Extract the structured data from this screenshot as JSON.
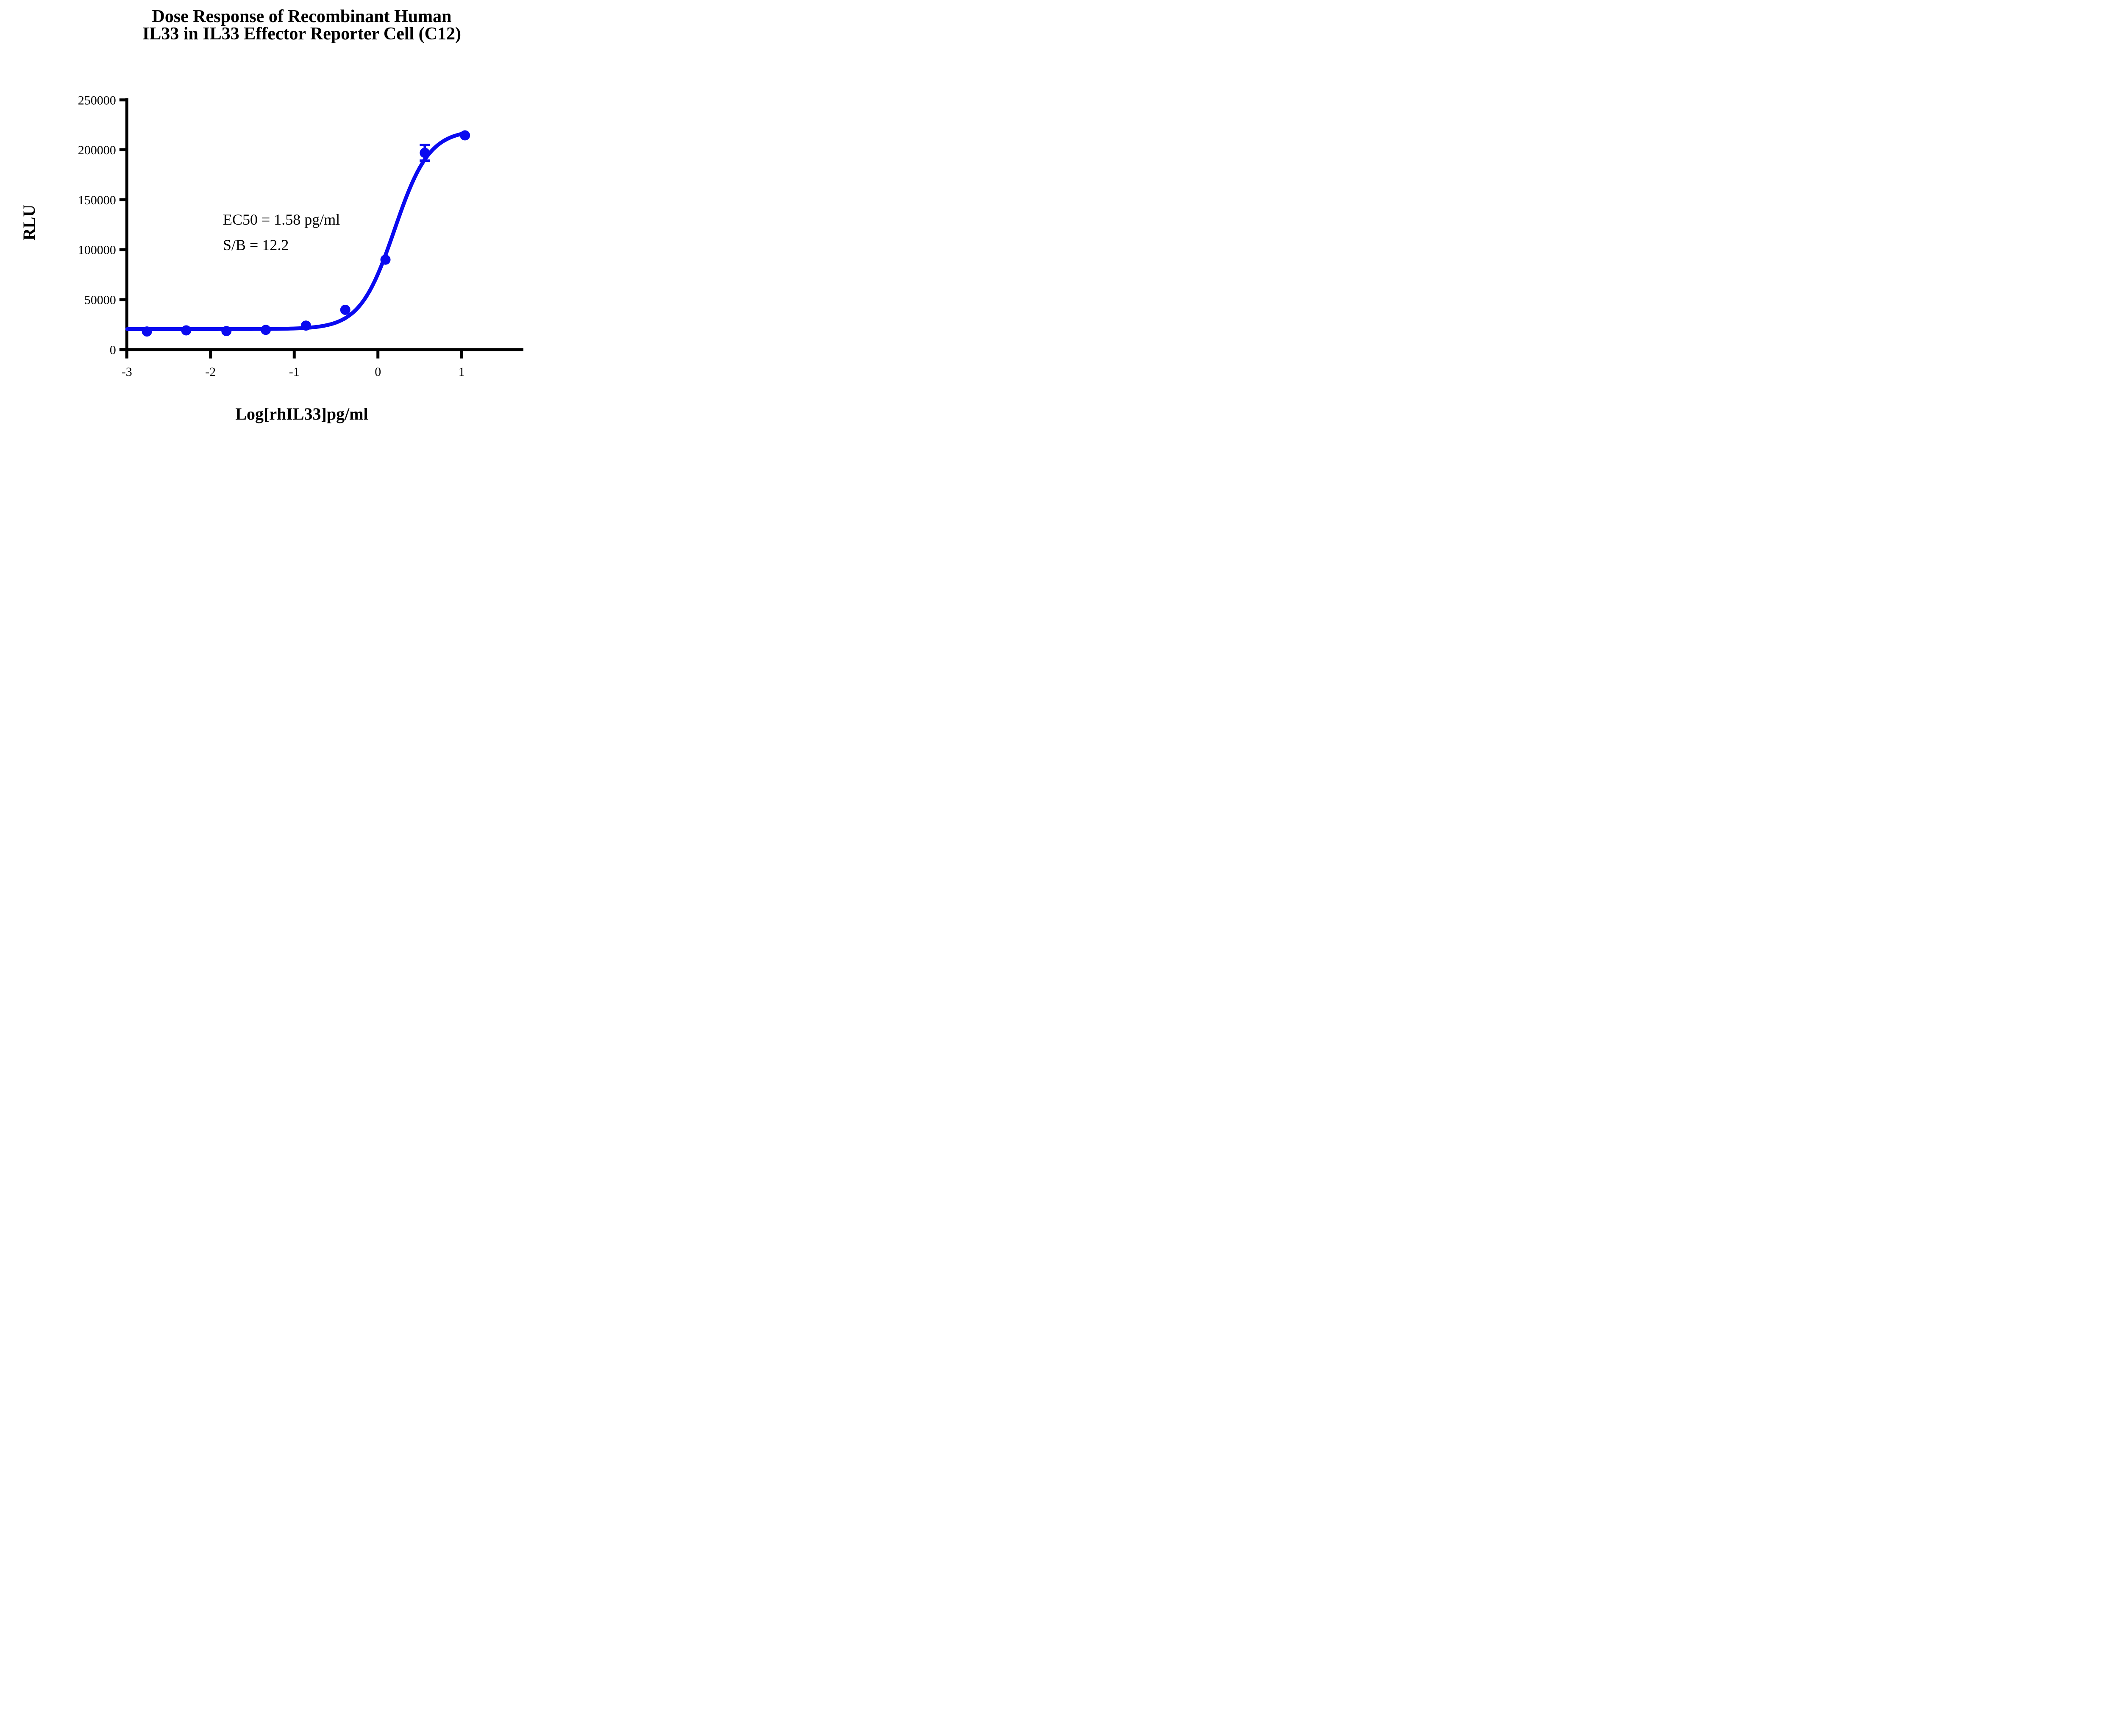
{
  "figure": {
    "title_line1": "Dose Response of Recombinant Human",
    "title_line2": "IL33 in IL33 Effector Reporter Cell (C12)",
    "y_axis_title": "RLU",
    "x_axis_title": "Log[rhIL33]pg/ml",
    "annotation_line1": "EC50 = 1.58 pg/ml",
    "annotation_line2": "S/B = 12.2"
  },
  "chart_data": {
    "type": "scatter",
    "title": "Dose Response of Recombinant Human IL33 in IL33 Effector Reporter Cell (C12)",
    "xlabel": "Log[rhIL33]pg/ml",
    "ylabel": "RLU",
    "xlim": [
      -3,
      1.74
    ],
    "ylim": [
      0,
      250000
    ],
    "x_ticks": [
      -3,
      -2,
      -1,
      0,
      1
    ],
    "y_ticks": [
      0,
      50000,
      100000,
      150000,
      200000,
      250000
    ],
    "grid": false,
    "legend": "none",
    "series_color": "#0A0AF0",
    "points": [
      {
        "x": -2.76,
        "y": 18100
      },
      {
        "x": -2.29,
        "y": 19200
      },
      {
        "x": -1.81,
        "y": 18500
      },
      {
        "x": -1.34,
        "y": 19700
      },
      {
        "x": -0.86,
        "y": 24000
      },
      {
        "x": -0.39,
        "y": 39800
      },
      {
        "x": 0.09,
        "y": 90000
      },
      {
        "x": 0.56,
        "y": 197000,
        "error": 7900
      },
      {
        "x": 1.04,
        "y": 214500
      }
    ],
    "fit_curve": {
      "model": "4PL",
      "bottom": 20500,
      "top": 220000,
      "log_ec50": 0.199,
      "hill": 2.1,
      "x_start": -2.995,
      "x_end": 1.043
    },
    "ec50": "1.58 pg/ml",
    "signal_to_background": 12.2
  }
}
